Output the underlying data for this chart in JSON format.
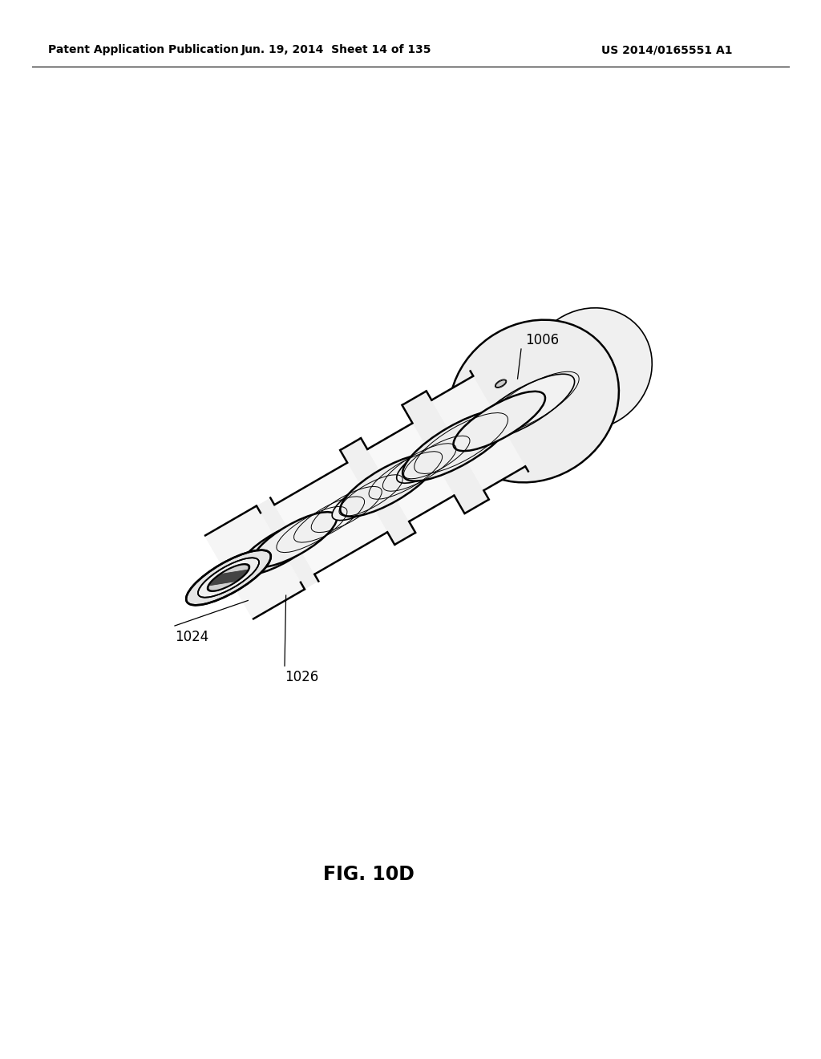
{
  "header_left": "Patent Application Publication",
  "header_middle": "Jun. 19, 2014  Sheet 14 of 135",
  "header_right": "US 2014/0165551 A1",
  "figure_label": "FIG. 10D",
  "ref_1006": "1006",
  "ref_1024": "1024",
  "ref_1026": "1026",
  "bg_color": "#ffffff",
  "line_color": "#000000",
  "header_fontsize": 10,
  "fig_label_fontsize": 17,
  "ref_fontsize": 12
}
